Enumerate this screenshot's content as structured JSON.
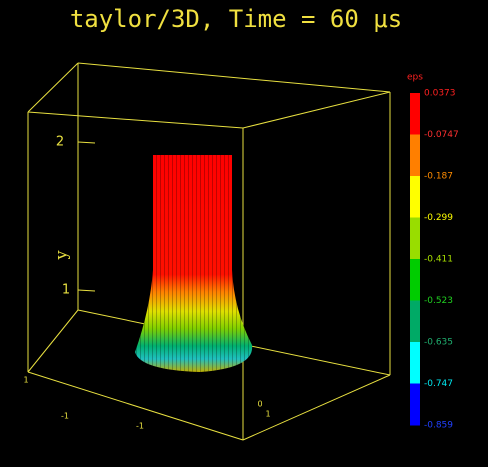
{
  "title": "taylor/3D, Time = 60 μs",
  "colorbar": {
    "title": "eps",
    "labels": [
      "0.0373",
      "-0.0747",
      "-0.187",
      "-0.299",
      "-0.411",
      "-0.523",
      "-0.635",
      "-0.747",
      "-0.859"
    ],
    "label_colors": [
      "#ff2020",
      "#ff3030",
      "#ff8c00",
      "#ffff00",
      "#a8e000",
      "#20d020",
      "#20b070",
      "#00e8f0",
      "#2040ff"
    ],
    "colors": [
      "#ff0000",
      "#ff7f00",
      "#ffff00",
      "#99dd00",
      "#00cc00",
      "#00aa66",
      "#00ffff",
      "#0000ff"
    ]
  },
  "axis_labels": {
    "y": "y",
    "y_ticks": [
      "2",
      "1"
    ],
    "front_ticks": [
      "1",
      "-1",
      "-1",
      "0",
      "1"
    ]
  }
}
